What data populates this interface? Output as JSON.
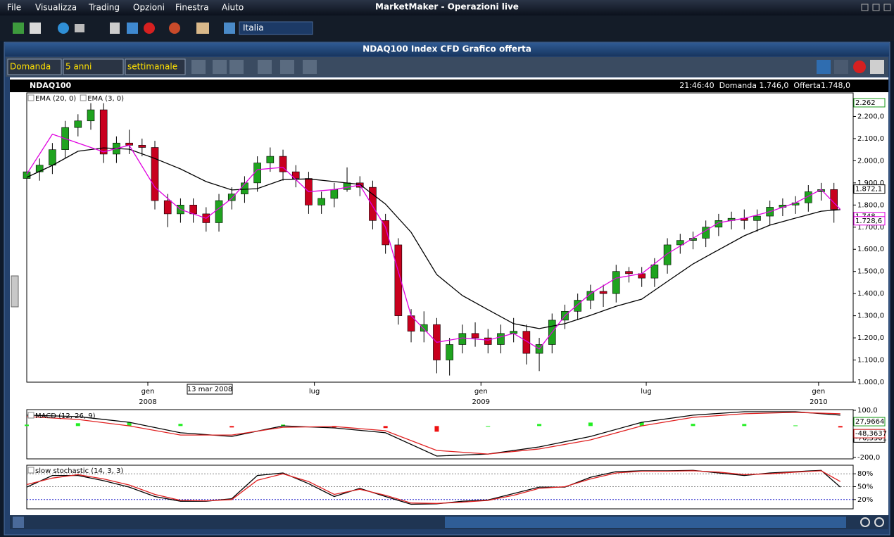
{
  "app": {
    "title": "MarketMaker - Operazioni live",
    "menu": [
      "File",
      "Visualizza",
      "Trading",
      "Opzioni",
      "Finestra",
      "Aiuto"
    ],
    "market": "Italia"
  },
  "window": {
    "title": "NDAQ100 Index CFD Grafico offerta",
    "price_side": "Domanda",
    "period": "5 anni",
    "interval": "settimanale"
  },
  "chart_header": {
    "symbol": "NDAQ100",
    "quote": "21:46:40  Domanda 1.746,0  Offerta1.748,0",
    "cursor_date": "13 mar 2008"
  },
  "chart_data": [
    {
      "type": "candlestick",
      "up_color": "#1fa31f",
      "down_color": "#c8001e",
      "x": [
        0,
        2,
        4,
        6,
        8,
        10,
        12,
        14,
        16,
        18,
        20,
        22,
        24,
        26,
        28,
        30,
        32,
        34,
        36,
        38,
        40,
        42,
        44,
        46,
        48,
        50,
        52,
        54,
        56,
        58,
        60,
        62,
        64,
        66,
        68,
        70,
        72,
        74,
        76,
        78,
        80,
        82,
        84,
        86,
        88,
        90,
        92,
        94,
        96,
        98,
        100,
        102,
        104,
        106,
        108,
        110,
        112,
        114,
        116,
        118,
        120,
        122,
        124,
        126
      ],
      "open": [
        1920,
        1950,
        1980,
        2050,
        2150,
        2180,
        2230,
        2030,
        2080,
        2070,
        2060,
        1820,
        1760,
        1800,
        1760,
        1720,
        1820,
        1850,
        1900,
        1990,
        2020,
        1950,
        1920,
        1800,
        1830,
        1870,
        1900,
        1880,
        1730,
        1620,
        1300,
        1230,
        1260,
        1100,
        1170,
        1220,
        1200,
        1170,
        1220,
        1230,
        1130,
        1170,
        1280,
        1320,
        1370,
        1410,
        1400,
        1500,
        1490,
        1470,
        1530,
        1620,
        1640,
        1650,
        1700,
        1730,
        1740,
        1730,
        1750,
        1790,
        1800,
        1810,
        1860,
        1870
      ],
      "high": [
        1980,
        2010,
        2080,
        2180,
        2210,
        2260,
        2260,
        2110,
        2140,
        2100,
        2090,
        1850,
        1830,
        1830,
        1790,
        1850,
        1880,
        1930,
        2020,
        2060,
        2050,
        1980,
        1950,
        1860,
        1900,
        1970,
        1930,
        1910,
        1760,
        1650,
        1330,
        1320,
        1290,
        1200,
        1260,
        1270,
        1240,
        1260,
        1290,
        1260,
        1200,
        1310,
        1350,
        1400,
        1440,
        1440,
        1530,
        1520,
        1520,
        1560,
        1650,
        1670,
        1680,
        1730,
        1760,
        1770,
        1780,
        1780,
        1820,
        1830,
        1840,
        1890,
        1900,
        1900
      ],
      "low": [
        1880,
        1910,
        1940,
        2010,
        2110,
        2140,
        1990,
        1990,
        2030,
        2020,
        1780,
        1700,
        1720,
        1720,
        1680,
        1680,
        1780,
        1810,
        1860,
        1950,
        1910,
        1880,
        1760,
        1760,
        1790,
        1860,
        1840,
        1690,
        1580,
        1260,
        1180,
        1180,
        1040,
        1030,
        1130,
        1160,
        1130,
        1130,
        1180,
        1080,
        1050,
        1130,
        1240,
        1280,
        1330,
        1340,
        1360,
        1450,
        1430,
        1430,
        1490,
        1580,
        1600,
        1610,
        1660,
        1690,
        1690,
        1680,
        1710,
        1750,
        1760,
        1770,
        1820,
        1720
      ],
      "close": [
        1950,
        1980,
        2050,
        2150,
        2180,
        2230,
        2030,
        2080,
        2070,
        2060,
        1820,
        1760,
        1800,
        1760,
        1720,
        1820,
        1850,
        1900,
        1990,
        2020,
        1950,
        1920,
        1800,
        1830,
        1870,
        1900,
        1880,
        1730,
        1620,
        1300,
        1230,
        1260,
        1100,
        1170,
        1220,
        1200,
        1170,
        1220,
        1230,
        1130,
        1170,
        1280,
        1320,
        1370,
        1410,
        1400,
        1500,
        1490,
        1470,
        1530,
        1620,
        1640,
        1650,
        1700,
        1730,
        1740,
        1730,
        1750,
        1790,
        1800,
        1810,
        1860,
        1870,
        1780
      ],
      "series": [
        {
          "name": "EMA (20, 0)",
          "color": "#000000",
          "x": [
            0,
            4,
            8,
            12,
            16,
            20,
            24,
            28,
            32,
            36,
            40,
            44,
            48,
            52,
            56,
            60,
            64,
            68,
            72,
            76,
            80,
            84,
            88,
            92,
            96,
            100,
            104,
            108,
            112,
            116,
            120,
            124,
            127
          ],
          "values": [
            1925,
            1979,
            2043,
            2058,
            2052,
            2010,
            1963,
            1906,
            1868,
            1874,
            1915,
            1918,
            1906,
            1893,
            1804,
            1677,
            1486,
            1391,
            1327,
            1264,
            1242,
            1264,
            1302,
            1343,
            1375,
            1455,
            1534,
            1598,
            1661,
            1709,
            1741,
            1772,
            1779
          ]
        },
        {
          "name": "EMA (3, 0)",
          "color": "#e000e0",
          "x": [
            0,
            4,
            8,
            12,
            16,
            20,
            24,
            28,
            32,
            36,
            40,
            44,
            48,
            52,
            56,
            60,
            64,
            68,
            72,
            76,
            80,
            84,
            88,
            92,
            96,
            100,
            104,
            108,
            112,
            116,
            120,
            124,
            127
          ],
          "values": [
            1940,
            2120,
            2080,
            2040,
            2070,
            1880,
            1780,
            1740,
            1830,
            1960,
            1970,
            1860,
            1870,
            1890,
            1700,
            1300,
            1180,
            1200,
            1190,
            1220,
            1150,
            1300,
            1400,
            1470,
            1490,
            1580,
            1650,
            1720,
            1740,
            1770,
            1810,
            1870,
            1780
          ]
        }
      ],
      "xlim": [
        0,
        129
      ],
      "ylim": [
        1000,
        2300
      ],
      "yticks": [
        {
          "value": 1000,
          "label": "1.000,0"
        },
        {
          "value": 1100,
          "label": "1.100,0"
        },
        {
          "value": 1200,
          "label": "1.200,0"
        },
        {
          "value": 1300,
          "label": "1.300,0"
        },
        {
          "value": 1400,
          "label": "1.400,0"
        },
        {
          "value": 1500,
          "label": "1.500,0"
        },
        {
          "value": 1600,
          "label": "1.600,0"
        },
        {
          "value": 1700,
          "label": "1.700,0"
        },
        {
          "value": 1800,
          "label": "1.800,0"
        },
        {
          "value": 1900,
          "label": "1.900,0"
        },
        {
          "value": 2000,
          "label": "2.000,0"
        },
        {
          "value": 2100,
          "label": "2.100,0"
        },
        {
          "value": 2200,
          "label": "2.200,0"
        }
      ],
      "xticks": [
        {
          "value": 18.9,
          "label": "gen"
        },
        {
          "value": 44.9,
          "label": "lug"
        },
        {
          "value": 70.9,
          "label": "gen"
        },
        {
          "value": 96.7,
          "label": "lug"
        },
        {
          "value": 123.6,
          "label": "gen"
        }
      ],
      "year_labels": [
        {
          "value": 18.9,
          "label": "2008"
        },
        {
          "value": 70.9,
          "label": "2009"
        },
        {
          "value": 123.6,
          "label": "2010"
        }
      ],
      "price_markers": [
        {
          "value": 2262,
          "label": "2.262",
          "color": "#1a9a1a"
        },
        {
          "value": 1872.1,
          "label": "1.872,1",
          "color": "#000000"
        },
        {
          "value": 1748,
          "label": "1.748",
          "color": "#e000e0"
        },
        {
          "value": 1728.6,
          "label": "1.728,6",
          "color": "#e000e0"
        }
      ]
    },
    {
      "type": "macd",
      "title": "MACD (12, 26, 9)",
      "xlim": [
        0,
        129
      ],
      "ylim": [
        -200,
        100
      ],
      "yticks": [
        {
          "value": 100,
          "label": "100,0"
        },
        {
          "value": -200,
          "label": "-200,0"
        }
      ],
      "x": [
        0,
        8,
        16,
        24,
        32,
        40,
        48,
        56,
        64,
        72,
        80,
        88,
        96,
        104,
        112,
        120,
        127
      ],
      "histogram": {
        "up_color": "#22ee22",
        "down_color": "#ee1111",
        "values": [
          9,
          18,
          23,
          14,
          -9,
          9,
          -9,
          -13,
          -36,
          0,
          13,
          22,
          23,
          14,
          13,
          4,
          -9
        ]
      },
      "series": [
        {
          "color": "#000000",
          "values": [
            69,
            60,
            24,
            -43,
            -66,
            1,
            -12,
            -43,
            -191,
            -178,
            -133,
            -66,
            24,
            69,
            91,
            91,
            69
          ]
        },
        {
          "color": "#e02020",
          "values": [
            60,
            42,
            1,
            -57,
            -57,
            -8,
            -3,
            -30,
            -155,
            -178,
            -146,
            -88,
            1,
            55,
            78,
            87,
            78
          ]
        }
      ],
      "price_markers": [
        {
          "value": 27.9664,
          "label": "27,9664",
          "color": "#1a9a1a"
        },
        {
          "value": -76.3301,
          "label": "-76,3301",
          "color": "#000000"
        },
        {
          "value": -48.3637,
          "label": "-48,3637",
          "color": "#c00000"
        }
      ]
    },
    {
      "type": "stochastic",
      "title": "slow stochastic (14, 3, 3)",
      "xlim": [
        0,
        129
      ],
      "ylim": [
        0,
        100
      ],
      "yticks": [
        {
          "value": 80,
          "label": "80%"
        },
        {
          "value": 50,
          "label": "50%"
        },
        {
          "value": 20,
          "label": "20%"
        }
      ],
      "grid": true,
      "grid_colors": [
        "#888888",
        "#888888",
        "#2222cc"
      ],
      "x": [
        0,
        4,
        8,
        12,
        16,
        20,
        24,
        28,
        32,
        36,
        40,
        44,
        48,
        52,
        56,
        60,
        64,
        68,
        72,
        76,
        80,
        84,
        88,
        92,
        96,
        100,
        104,
        108,
        112,
        116,
        120,
        124,
        127
      ],
      "series": [
        {
          "color": "#000000",
          "values": [
            49,
            76,
            76,
            64,
            49,
            27,
            16,
            16,
            22,
            76,
            82,
            57,
            27,
            46,
            27,
            9,
            10,
            16,
            19,
            34,
            49,
            49,
            72,
            85,
            87,
            87,
            88,
            82,
            76,
            82,
            85,
            88,
            49
          ]
        },
        {
          "color": "#e02020",
          "values": [
            55,
            70,
            78,
            68,
            54,
            32,
            18,
            17,
            20,
            65,
            80,
            62,
            32,
            44,
            30,
            12,
            11,
            14,
            18,
            30,
            46,
            50,
            68,
            82,
            86,
            86,
            87,
            84,
            78,
            80,
            84,
            87,
            62
          ]
        }
      ]
    }
  ]
}
